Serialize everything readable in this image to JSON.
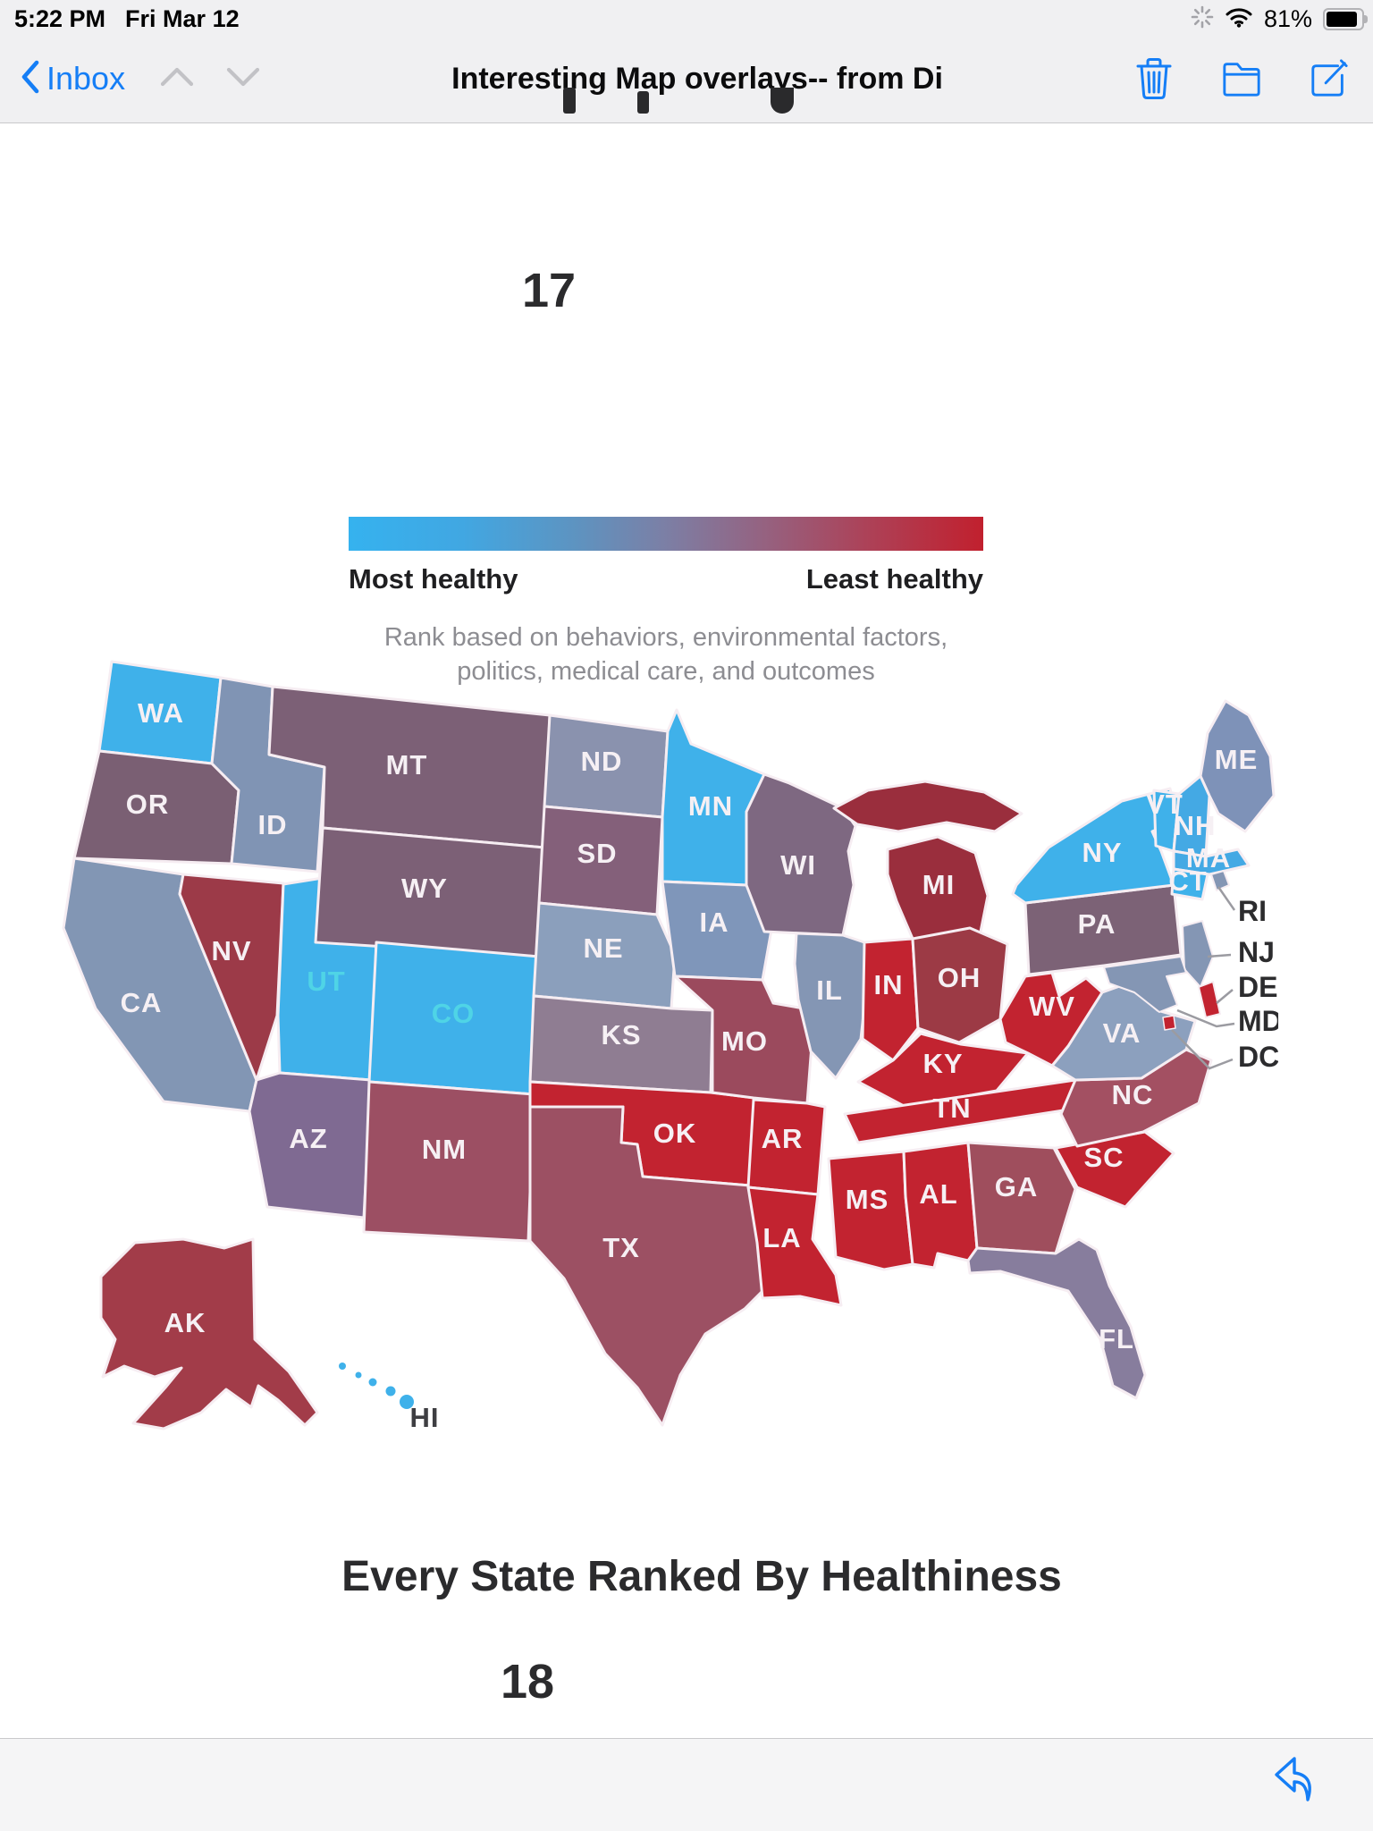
{
  "status_bar": {
    "time": "5:22 PM",
    "date": "Fri Mar 12",
    "battery_percent": "81%"
  },
  "nav_bar": {
    "back_label": "Inbox",
    "title": "Interesting Map overlays-- from Di"
  },
  "email_content": {
    "page_number_top": "17",
    "legend": {
      "gradient_left_label": "Most healthy",
      "gradient_right_label": "Least healthy",
      "caption_line_1": "Rank based on behaviors, environmental factors,",
      "caption_line_2": "politics, medical care, and outcomes",
      "gradient_start_color": "#35b2ef",
      "gradient_end_color": "#c1202e"
    },
    "map_heading": "Every State Ranked By Healthiness",
    "page_number_bottom": "18",
    "map": {
      "label_default_color": "#f6f0f4",
      "states": [
        {
          "id": "WA",
          "label": "WA",
          "fill": "#3fb1ea",
          "tier": "most-healthy"
        },
        {
          "id": "OR",
          "label": "OR",
          "fill": "#7a5f73",
          "tier": "middle"
        },
        {
          "id": "CA",
          "label": "CA",
          "fill": "#8296b4",
          "tier": "healthy"
        },
        {
          "id": "ID",
          "label": "ID",
          "fill": "#8094b4",
          "tier": "healthy"
        },
        {
          "id": "NV",
          "label": "NV",
          "fill": "#9c3a48",
          "tier": "poor"
        },
        {
          "id": "UT",
          "label": "UT",
          "fill": "#3fb1ea",
          "tier": "most-healthy",
          "label_color": "#4fd4e6"
        },
        {
          "id": "AZ",
          "label": "AZ",
          "fill": "#7f6a92",
          "tier": "middle"
        },
        {
          "id": "MT",
          "label": "MT",
          "fill": "#7c6076",
          "tier": "middle"
        },
        {
          "id": "WY",
          "label": "WY",
          "fill": "#7c6076",
          "tier": "middle"
        },
        {
          "id": "CO",
          "label": "CO",
          "fill": "#3fb1ea",
          "tier": "most-healthy",
          "label_color": "#4fd4e6"
        },
        {
          "id": "NM",
          "label": "NM",
          "fill": "#9c4f63",
          "tier": "below-average"
        },
        {
          "id": "ND",
          "label": "ND",
          "fill": "#8a92ae",
          "tier": "healthy"
        },
        {
          "id": "SD",
          "label": "SD",
          "fill": "#84607a",
          "tier": "middle"
        },
        {
          "id": "NE",
          "label": "NE",
          "fill": "#8b9fbc",
          "tier": "healthy"
        },
        {
          "id": "KS",
          "label": "KS",
          "fill": "#8f7d92",
          "tier": "middle"
        },
        {
          "id": "OK",
          "label": "OK",
          "fill": "#c22330",
          "tier": "least-healthy"
        },
        {
          "id": "TX",
          "label": "TX",
          "fill": "#9c5063",
          "tier": "below-average"
        },
        {
          "id": "MN",
          "label": "MN",
          "fill": "#3fb1ea",
          "tier": "most-healthy"
        },
        {
          "id": "IA",
          "label": "IA",
          "fill": "#7f96ba",
          "tier": "healthy"
        },
        {
          "id": "MO",
          "label": "MO",
          "fill": "#9b4a5d",
          "tier": "below-average"
        },
        {
          "id": "AR",
          "label": "AR",
          "fill": "#c22330",
          "tier": "least-healthy"
        },
        {
          "id": "LA",
          "label": "LA",
          "fill": "#c22330",
          "tier": "least-healthy"
        },
        {
          "id": "WI",
          "label": "WI",
          "fill": "#7e6881",
          "tier": "middle"
        },
        {
          "id": "IL",
          "label": "IL",
          "fill": "#8496b4",
          "tier": "healthy"
        },
        {
          "id": "IN",
          "label": "IN",
          "fill": "#c22330",
          "tier": "least-healthy"
        },
        {
          "id": "MI",
          "label": "MI",
          "fill": "#9a2e3d",
          "tier": "poor"
        },
        {
          "id": "OH",
          "label": "OH",
          "fill": "#9c3a45",
          "tier": "poor"
        },
        {
          "id": "KY",
          "label": "KY",
          "fill": "#c22330",
          "tier": "least-healthy"
        },
        {
          "id": "TN",
          "label": "TN",
          "fill": "#c22330",
          "tier": "least-healthy"
        },
        {
          "id": "MS",
          "label": "MS",
          "fill": "#c22330",
          "tier": "least-healthy"
        },
        {
          "id": "AL",
          "label": "AL",
          "fill": "#c22330",
          "tier": "least-healthy"
        },
        {
          "id": "GA",
          "label": "GA",
          "fill": "#9f4e5d",
          "tier": "below-average"
        },
        {
          "id": "FL",
          "label": "FL",
          "fill": "#877d9d",
          "tier": "middle"
        },
        {
          "id": "SC",
          "label": "SC",
          "fill": "#c22330",
          "tier": "least-healthy"
        },
        {
          "id": "NC",
          "label": "NC",
          "fill": "#a35062",
          "tier": "below-average"
        },
        {
          "id": "VA",
          "label": "VA",
          "fill": "#8ca0be",
          "tier": "healthy"
        },
        {
          "id": "WV",
          "label": "WV",
          "fill": "#c22330",
          "tier": "least-healthy"
        },
        {
          "id": "PA",
          "label": "PA",
          "fill": "#7c6276",
          "tier": "middle"
        },
        {
          "id": "NY",
          "label": "NY",
          "fill": "#3fb1ea",
          "tier": "most-healthy"
        },
        {
          "id": "VT",
          "label": "VT",
          "fill": "#3fb1ea",
          "tier": "most-healthy"
        },
        {
          "id": "NH",
          "label": "NH",
          "fill": "#44a9e4",
          "tier": "most-healthy"
        },
        {
          "id": "ME",
          "label": "ME",
          "fill": "#7e92b8",
          "tier": "healthy"
        },
        {
          "id": "MA",
          "label": "MA",
          "fill": "#44a9e4",
          "tier": "most-healthy"
        },
        {
          "id": "CT",
          "label": "CT",
          "fill": "#3fb1ea",
          "tier": "most-healthy"
        },
        {
          "id": "RI",
          "label": null,
          "fill": "#8496b4",
          "tier": "healthy"
        },
        {
          "id": "NJ",
          "label": null,
          "fill": "#8496b4",
          "tier": "healthy"
        },
        {
          "id": "DE",
          "label": null,
          "fill": "#c22330",
          "tier": "least-healthy"
        },
        {
          "id": "MD",
          "label": null,
          "fill": "#8496b4",
          "tier": "healthy"
        },
        {
          "id": "DC",
          "label": null,
          "fill": "#c22330",
          "tier": "least-healthy"
        },
        {
          "id": "AK",
          "label": "AK",
          "fill": "#a23c49",
          "tier": "poor"
        },
        {
          "id": "HI",
          "label": "HI",
          "fill": "#3fb1ea",
          "tier": "most-healthy",
          "label_color": "#3e3e42"
        }
      ],
      "callouts": [
        {
          "id": "RI",
          "label": "RI"
        },
        {
          "id": "NJ",
          "label": "NJ"
        },
        {
          "id": "DE",
          "label": "DE"
        },
        {
          "id": "MD",
          "label": "MD"
        },
        {
          "id": "DC",
          "label": "DC"
        }
      ]
    }
  }
}
